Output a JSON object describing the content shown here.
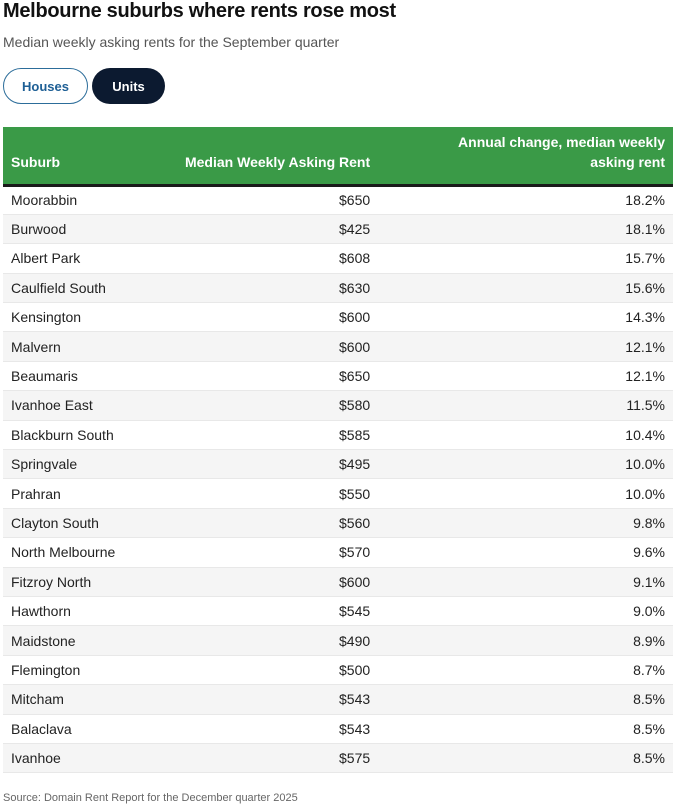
{
  "header": {
    "title": "Melbourne suburbs where rents rose most",
    "subtitle": "Median weekly asking rents for the September quarter"
  },
  "toggle": {
    "houses_label": "Houses",
    "units_label": "Units",
    "selected": "Units"
  },
  "colors": {
    "header_bg": "#3a9a47",
    "active_button": "#0c1a30",
    "houses_text": "#1e5f95"
  },
  "chart_data": {
    "type": "table",
    "title": "Melbourne suburbs where rents rose most",
    "columns": [
      "Suburb",
      "Median Weekly Asking Rent",
      "Annual change, median weekly asking rent"
    ],
    "rows": [
      [
        "Moorabbin",
        "$650",
        "18.2%"
      ],
      [
        "Burwood",
        "$425",
        "18.1%"
      ],
      [
        "Albert Park",
        "$608",
        "15.7%"
      ],
      [
        "Caulfield South",
        "$630",
        "15.6%"
      ],
      [
        "Kensington",
        "$600",
        "14.3%"
      ],
      [
        "Malvern",
        "$600",
        "12.1%"
      ],
      [
        "Beaumaris",
        "$650",
        "12.1%"
      ],
      [
        "Ivanhoe East",
        "$580",
        "11.5%"
      ],
      [
        "Blackburn South",
        "$585",
        "10.4%"
      ],
      [
        "Springvale",
        "$495",
        "10.0%"
      ],
      [
        "Prahran",
        "$550",
        "10.0%"
      ],
      [
        "Clayton South",
        "$560",
        "9.8%"
      ],
      [
        "North Melbourne",
        "$570",
        "9.6%"
      ],
      [
        "Fitzroy North",
        "$600",
        "9.1%"
      ],
      [
        "Hawthorn",
        "$545",
        "9.0%"
      ],
      [
        "Maidstone",
        "$490",
        "8.9%"
      ],
      [
        "Flemington",
        "$500",
        "8.7%"
      ],
      [
        "Mitcham",
        "$543",
        "8.5%"
      ],
      [
        "Balaclava",
        "$543",
        "8.5%"
      ],
      [
        "Ivanhoe",
        "$575",
        "8.5%"
      ]
    ]
  },
  "footer": {
    "source": "Source: Domain Rent Report for the December quarter 2025"
  }
}
